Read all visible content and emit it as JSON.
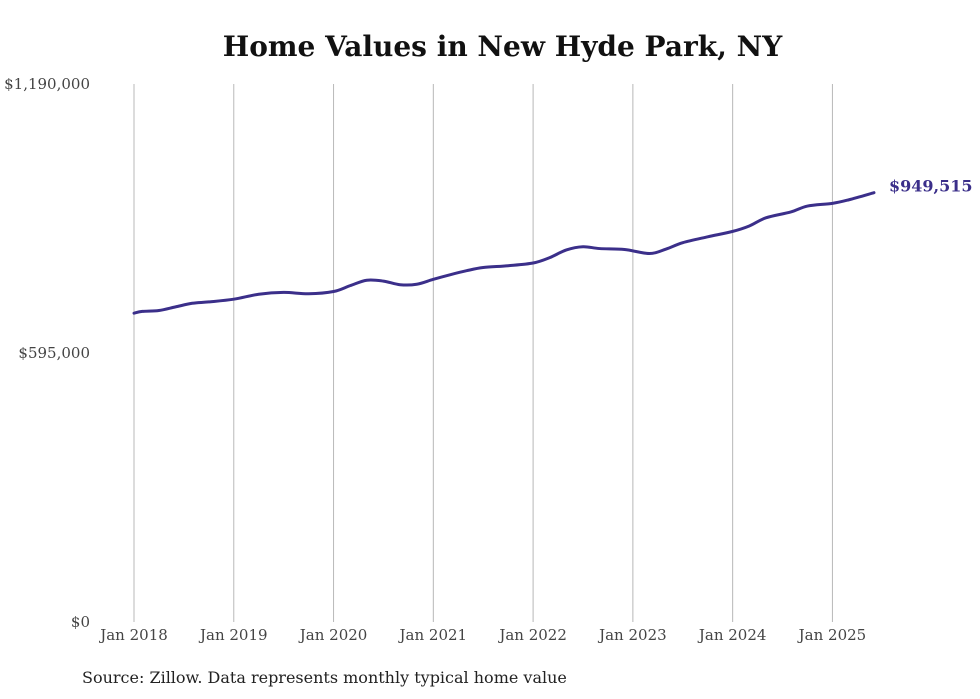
{
  "chart_data": {
    "type": "line",
    "title": "Home Values in New Hyde Park, NY",
    "xlabel": "",
    "ylabel": "",
    "y_ticks": [
      {
        "value": 0,
        "label": "$0"
      },
      {
        "value": 595000,
        "label": "$595,000"
      },
      {
        "value": 1190000,
        "label": "$1,190,000"
      }
    ],
    "ylim": [
      0,
      1190000
    ],
    "x_ticks": [
      {
        "date": "2018-01",
        "label": "Jan 2018"
      },
      {
        "date": "2019-01",
        "label": "Jan 2019"
      },
      {
        "date": "2020-01",
        "label": "Jan 2020"
      },
      {
        "date": "2021-01",
        "label": "Jan 2021"
      },
      {
        "date": "2022-01",
        "label": "Jan 2022"
      },
      {
        "date": "2023-01",
        "label": "Jan 2023"
      },
      {
        "date": "2024-01",
        "label": "Jan 2024"
      },
      {
        "date": "2025-01",
        "label": "Jan 2025"
      }
    ],
    "x_range": [
      "2018-01",
      "2025-06"
    ],
    "grid": "vertical",
    "color": "#3b2f8a",
    "end_label": "$949,515",
    "series": [
      {
        "points": [
          [
            "2018-01",
            683000
          ],
          [
            "2018-02",
            687000
          ],
          [
            "2018-04",
            689000
          ],
          [
            "2018-06",
            697000
          ],
          [
            "2018-08",
            705000
          ],
          [
            "2018-10",
            708000
          ],
          [
            "2019-01",
            714000
          ],
          [
            "2019-04",
            725000
          ],
          [
            "2019-07",
            729000
          ],
          [
            "2019-10",
            726000
          ],
          [
            "2020-01",
            731000
          ],
          [
            "2020-03",
            744000
          ],
          [
            "2020-05",
            756000
          ],
          [
            "2020-07",
            754000
          ],
          [
            "2020-09",
            746000
          ],
          [
            "2020-11",
            747000
          ],
          [
            "2021-01",
            758000
          ],
          [
            "2021-03",
            768000
          ],
          [
            "2021-05",
            777000
          ],
          [
            "2021-07",
            784000
          ],
          [
            "2021-10",
            788000
          ],
          [
            "2022-01",
            794000
          ],
          [
            "2022-03",
            806000
          ],
          [
            "2022-05",
            823000
          ],
          [
            "2022-07",
            830000
          ],
          [
            "2022-09",
            826000
          ],
          [
            "2022-12",
            824000
          ],
          [
            "2023-03",
            815000
          ],
          [
            "2023-05",
            825000
          ],
          [
            "2023-07",
            839000
          ],
          [
            "2023-10",
            852000
          ],
          [
            "2024-01",
            864000
          ],
          [
            "2024-03",
            876000
          ],
          [
            "2024-05",
            894000
          ],
          [
            "2024-08",
            907000
          ],
          [
            "2024-10",
            920000
          ],
          [
            "2025-01",
            926000
          ],
          [
            "2025-03",
            934000
          ],
          [
            "2025-06",
            949515
          ]
        ]
      }
    ]
  },
  "footer": {
    "source": "Source: Zillow. Data represents monthly typical home value"
  }
}
